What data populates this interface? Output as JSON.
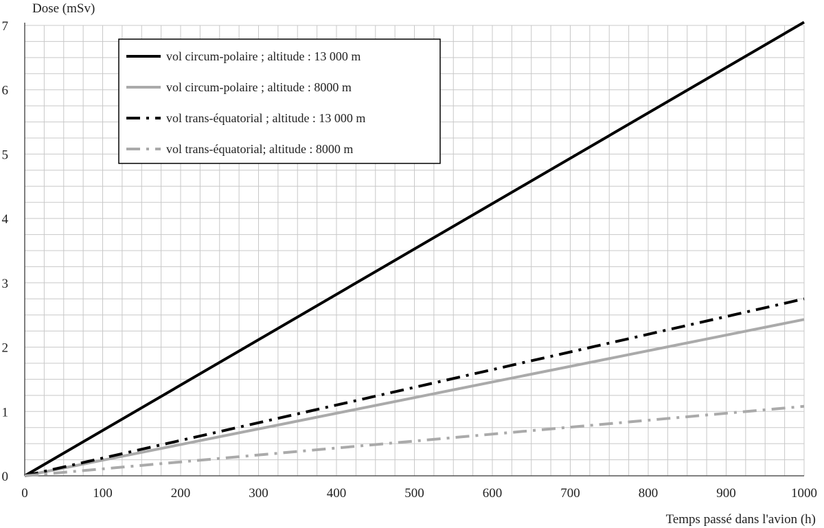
{
  "chart_data": {
    "type": "line",
    "xlabel": "Temps passé dans l'avion (h)",
    "ylabel": "Dose (mSv)",
    "xlim": [
      0,
      1000
    ],
    "ylim": [
      0,
      7
    ],
    "x_ticks": [
      "0",
      "100",
      "200",
      "300",
      "400",
      "500",
      "600",
      "700",
      "800",
      "900",
      "1000"
    ],
    "y_ticks": [
      "0",
      "1",
      "2",
      "3",
      "4",
      "5",
      "6",
      "7"
    ],
    "grid": true,
    "legend_position": "top-left",
    "series": [
      {
        "name": "vol circum-polaire ; altitude : 13 000 m",
        "style": "solid",
        "color": "#000000",
        "x": [
          0,
          1000
        ],
        "y": [
          0,
          7.05
        ]
      },
      {
        "name": "vol circum-polaire ; altitude : 8000 m",
        "style": "solid",
        "color": "#aaaaaa",
        "x": [
          0,
          1000
        ],
        "y": [
          0,
          2.43
        ]
      },
      {
        "name": "vol trans-équatorial ; altitude : 13 000 m",
        "style": "dash-dot",
        "color": "#000000",
        "x": [
          0,
          1000
        ],
        "y": [
          0,
          2.75
        ]
      },
      {
        "name": "vol trans-équatorial; altitude : 8000 m",
        "style": "dash-dot",
        "color": "#aaaaaa",
        "x": [
          0,
          1000
        ],
        "y": [
          0,
          1.08
        ]
      }
    ]
  }
}
